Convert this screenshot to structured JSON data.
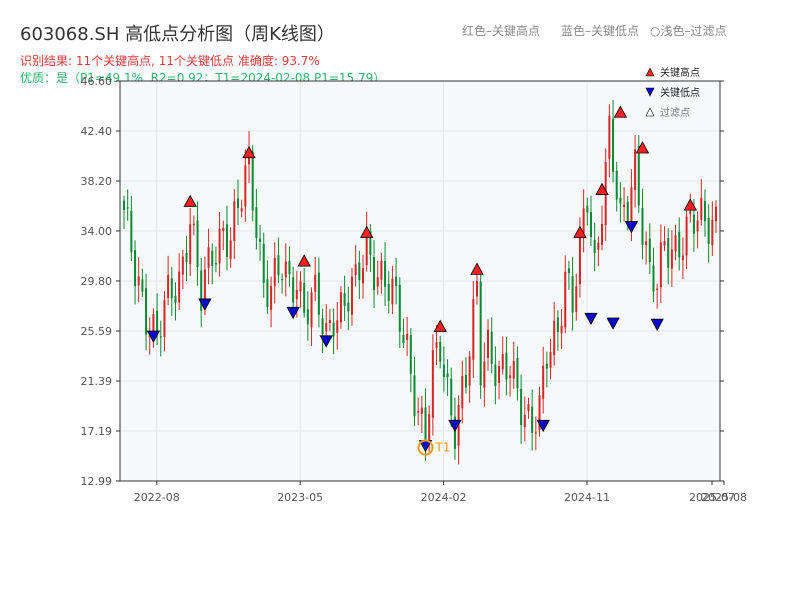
{
  "header": {
    "title": "603068.SH 高低点分析图（周K线图）",
    "result_text": "识别结果: 11个关键高点, 11个关键低点   准确度: 93.7%",
    "quality_text": "优质：是（P1=49.1%, R2=0.92；T1=2024-02-08 P1=15.79）"
  },
  "top_legend": {
    "item1": "红色–关键高点",
    "item2": "蓝色–关键低点",
    "item3": "浅色–过滤点"
  },
  "colors": {
    "up": "#d62728",
    "down": "#0a8a35",
    "high_marker": "#ff1f1f",
    "low_marker": "#0a0acc",
    "t1": "#f39c12",
    "plot_bg": "#f6f8fa",
    "grid": "#e2e6ea"
  },
  "chart_data": {
    "type": "candlestick",
    "title": "",
    "ylim": [
      12.99,
      46.6
    ],
    "yticks": [
      "46.60",
      "42.40",
      "38.20",
      "34.00",
      "29.80",
      "25.59",
      "21.39",
      "17.19",
      "12.99"
    ],
    "xticks": [
      "2022-08",
      "2023-05",
      "2024-02",
      "2024-11",
      "2025-07",
      "2025-08"
    ],
    "legend": {
      "items": [
        "关键高点",
        "关键低点",
        "过滤点"
      ],
      "position": "top-right"
    },
    "anchors": [
      [
        0,
        35.0
      ],
      [
        3,
        30.5
      ],
      [
        6,
        27.5
      ],
      [
        9,
        25.0
      ],
      [
        12,
        28.0
      ],
      [
        15,
        30.0
      ],
      [
        18,
        35.5
      ],
      [
        21,
        28.0
      ],
      [
        24,
        32.0
      ],
      [
        27,
        34.5
      ],
      [
        29,
        33.5
      ],
      [
        32,
        36.5
      ],
      [
        34,
        39.5
      ],
      [
        36,
        35.0
      ],
      [
        38,
        30.0
      ],
      [
        40,
        29.0
      ],
      [
        43,
        30.5
      ],
      [
        45,
        29.5
      ],
      [
        47,
        30.5
      ],
      [
        49,
        27.5
      ],
      [
        52,
        28.0
      ],
      [
        55,
        25.0
      ],
      [
        57,
        27.5
      ],
      [
        60,
        28.0
      ],
      [
        63,
        29.0
      ],
      [
        66,
        33.0
      ],
      [
        68,
        31.5
      ],
      [
        71,
        29.5
      ],
      [
        74,
        27.5
      ],
      [
        77,
        24.5
      ],
      [
        80,
        19.0
      ],
      [
        82,
        16.0
      ],
      [
        84,
        22.0
      ],
      [
        86,
        24.5
      ],
      [
        88,
        21.0
      ],
      [
        90,
        17.8
      ],
      [
        93,
        21.0
      ],
      [
        96,
        29.0
      ],
      [
        97,
        23.0
      ],
      [
        99,
        25.0
      ],
      [
        102,
        21.5
      ],
      [
        105,
        22.0
      ],
      [
        108,
        20.0
      ],
      [
        111,
        18.0
      ],
      [
        113,
        18.5
      ],
      [
        115,
        23.0
      ],
      [
        118,
        26.0
      ],
      [
        120,
        31.0
      ],
      [
        122,
        28.0
      ],
      [
        124,
        32.0
      ],
      [
        126,
        36.5
      ],
      [
        128,
        31.0
      ],
      [
        130,
        37.0
      ],
      [
        132,
        42.5
      ],
      [
        135,
        34.0
      ],
      [
        137,
        36.0
      ],
      [
        139,
        40.0
      ],
      [
        141,
        35.0
      ],
      [
        143,
        30.0
      ],
      [
        145,
        29.0
      ],
      [
        147,
        32.5
      ],
      [
        150,
        33.0
      ],
      [
        153,
        34.0
      ],
      [
        156,
        34.5
      ],
      [
        159,
        35.0
      ],
      [
        161,
        35.5
      ]
    ],
    "key_highs": [
      {
        "i": 18,
        "price": 35.8
      },
      {
        "i": 34,
        "price": 39.9
      },
      {
        "i": 49,
        "price": 30.8
      },
      {
        "i": 66,
        "price": 33.2
      },
      {
        "i": 86,
        "price": 25.3
      },
      {
        "i": 96,
        "price": 30.1
      },
      {
        "i": 124,
        "price": 33.2
      },
      {
        "i": 130,
        "price": 36.8
      },
      {
        "i": 135,
        "price": 43.3
      },
      {
        "i": 141,
        "price": 40.3
      },
      {
        "i": 154,
        "price": 35.5
      }
    ],
    "key_lows": [
      {
        "i": 8,
        "price": 25.0
      },
      {
        "i": 22,
        "price": 27.7
      },
      {
        "i": 46,
        "price": 27.0
      },
      {
        "i": 55,
        "price": 24.6
      },
      {
        "i": 82,
        "price": 15.8
      },
      {
        "i": 90,
        "price": 17.5
      },
      {
        "i": 114,
        "price": 17.5
      },
      {
        "i": 127,
        "price": 26.5
      },
      {
        "i": 133,
        "price": 26.1
      },
      {
        "i": 138,
        "price": 34.2
      },
      {
        "i": 145,
        "price": 26.0
      }
    ],
    "t1": {
      "label": "T1",
      "i": 82,
      "price": 15.8
    }
  }
}
